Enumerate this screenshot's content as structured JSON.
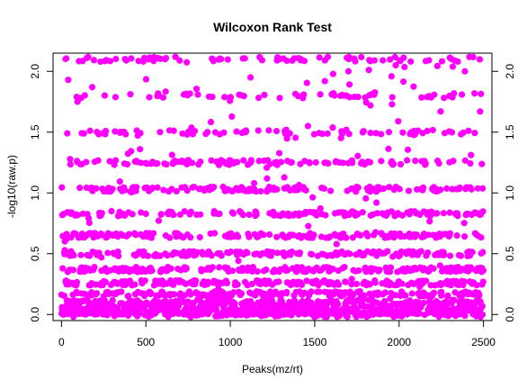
{
  "chart_data": {
    "type": "scatter",
    "title": "Wilcoxon Rank Test",
    "xlabel": "Peaks(mz/rt)",
    "ylabel": "-log10(raw.p)",
    "xlim": [
      -50,
      2550
    ],
    "ylim": [
      -0.05,
      2.15
    ],
    "x_ticks": [
      0,
      500,
      1000,
      1500,
      2000,
      2500
    ],
    "x_tick_labels": [
      "0",
      "500",
      "1000",
      "1500",
      "2000",
      "2500"
    ],
    "y_ticks": [
      0.0,
      0.5,
      1.0,
      1.5,
      2.0
    ],
    "y_tick_labels": [
      "0.0",
      "0.5",
      "1.0",
      "1.5",
      "2.0"
    ],
    "y_axis_right": true,
    "grid": false,
    "point_color": "#ff00ff",
    "n_points": 2500,
    "y_levels": [
      2.1,
      1.8,
      1.5,
      1.25,
      1.03,
      0.83,
      0.65,
      0.5,
      0.37,
      0.26,
      0.17,
      0.1,
      0.05,
      0.02,
      0.0
    ],
    "level_weights": [
      0.03,
      0.025,
      0.03,
      0.04,
      0.06,
      0.06,
      0.07,
      0.07,
      0.08,
      0.08,
      0.09,
      0.09,
      0.09,
      0.08,
      0.06
    ],
    "extra_points": [
      {
        "x": 1980,
        "y": 2.05
      },
      {
        "x": 1700,
        "y": 2.0
      },
      {
        "x": 2390,
        "y": 2.0
      },
      {
        "x": 40,
        "y": 1.93
      },
      {
        "x": 1120,
        "y": 1.95
      },
      {
        "x": 1560,
        "y": 1.92
      },
      {
        "x": 95,
        "y": 1.75
      },
      {
        "x": 1830,
        "y": 1.72
      },
      {
        "x": 2480,
        "y": 1.67
      },
      {
        "x": 1460,
        "y": 1.55
      }
    ]
  }
}
